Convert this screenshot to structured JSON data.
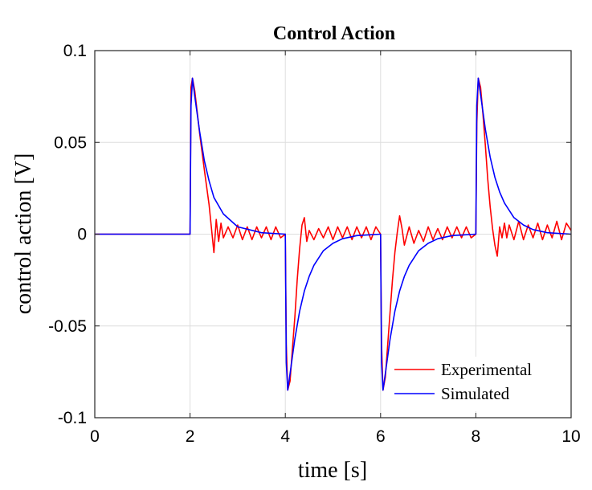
{
  "chart_data": {
    "type": "line",
    "title": "Control Action",
    "xlabel": "time [s]",
    "ylabel": "control action [V]",
    "xlim": [
      0,
      10
    ],
    "ylim": [
      -0.1,
      0.1
    ],
    "xticks": [
      0,
      2,
      4,
      6,
      8,
      10
    ],
    "yticks": [
      0.1,
      0.05,
      0,
      -0.05,
      -0.1
    ],
    "xtick_labels": [
      "0",
      "2",
      "4",
      "6",
      "8",
      "10"
    ],
    "ytick_labels": [
      "0.1",
      "0.05",
      "0",
      "-0.05",
      "-0.1"
    ],
    "grid": true,
    "legend": {
      "position": "bottom-right",
      "entries": [
        "Experimental",
        "Simulated"
      ]
    },
    "series": [
      {
        "name": "Experimental",
        "color": "#ff0000",
        "x": [
          0,
          2.0,
          2.02,
          2.05,
          2.1,
          2.2,
          2.3,
          2.4,
          2.45,
          2.5,
          2.55,
          2.6,
          2.65,
          2.7,
          2.8,
          2.9,
          3.0,
          3.1,
          3.2,
          3.3,
          3.4,
          3.5,
          3.6,
          3.7,
          3.8,
          3.9,
          4.0,
          4.02,
          4.05,
          4.1,
          4.15,
          4.2,
          4.25,
          4.3,
          4.35,
          4.4,
          4.45,
          4.5,
          4.6,
          4.7,
          4.8,
          4.9,
          5.0,
          5.1,
          5.2,
          5.3,
          5.4,
          5.5,
          5.6,
          5.7,
          5.8,
          5.9,
          6.0,
          6.02,
          6.05,
          6.1,
          6.15,
          6.2,
          6.25,
          6.3,
          6.35,
          6.4,
          6.45,
          6.5,
          6.6,
          6.7,
          6.8,
          6.9,
          7.0,
          7.1,
          7.2,
          7.3,
          7.4,
          7.5,
          7.6,
          7.7,
          7.8,
          7.9,
          8.0,
          8.02,
          8.05,
          8.1,
          8.15,
          8.2,
          8.25,
          8.3,
          8.35,
          8.4,
          8.45,
          8.5,
          8.55,
          8.6,
          8.65,
          8.7,
          8.8,
          8.9,
          9.0,
          9.1,
          9.2,
          9.3,
          9.4,
          9.5,
          9.6,
          9.7,
          9.8,
          9.9,
          10.0
        ],
        "y": [
          0,
          0,
          0.08,
          0.085,
          0.078,
          0.055,
          0.035,
          0.016,
          0.003,
          -0.01,
          0.008,
          -0.004,
          0.006,
          -0.002,
          0.004,
          -0.002,
          0.005,
          -0.003,
          0.004,
          -0.003,
          0.004,
          -0.002,
          0.004,
          -0.003,
          0.004,
          -0.002,
          0,
          -0.06,
          -0.085,
          -0.08,
          -0.062,
          -0.045,
          -0.025,
          -0.008,
          0.005,
          0.009,
          -0.004,
          0.002,
          -0.003,
          0.003,
          -0.002,
          0.004,
          -0.003,
          0.004,
          -0.002,
          0.004,
          -0.003,
          0.004,
          -0.002,
          0.004,
          -0.003,
          0.004,
          0,
          -0.06,
          -0.085,
          -0.078,
          -0.06,
          -0.042,
          -0.025,
          -0.01,
          0.001,
          0.01,
          0.003,
          -0.006,
          0.004,
          -0.005,
          0.002,
          -0.004,
          0.004,
          -0.003,
          0.003,
          -0.003,
          0.004,
          -0.002,
          0.004,
          -0.002,
          0.004,
          -0.002,
          0,
          0.06,
          0.085,
          0.08,
          0.065,
          0.048,
          0.03,
          0.015,
          0.003,
          -0.006,
          -0.012,
          0.004,
          -0.002,
          0.006,
          -0.002,
          0.005,
          -0.003,
          0.007,
          -0.003,
          0.005,
          -0.002,
          0.006,
          -0.003,
          0.005,
          -0.002,
          0.007,
          -0.003,
          0.006,
          0.002
        ]
      },
      {
        "name": "Simulated",
        "color": "#0000ff",
        "x": [
          0,
          2.0,
          2.02,
          2.05,
          2.1,
          2.2,
          2.3,
          2.4,
          2.5,
          2.7,
          3.0,
          3.5,
          4.0,
          4.02,
          4.05,
          4.1,
          4.2,
          4.3,
          4.4,
          4.5,
          4.6,
          4.8,
          5.0,
          5.2,
          5.5,
          6.0,
          6.02,
          6.05,
          6.1,
          6.2,
          6.3,
          6.4,
          6.5,
          6.6,
          6.8,
          7.0,
          7.2,
          7.5,
          8.0,
          8.02,
          8.05,
          8.1,
          8.2,
          8.3,
          8.4,
          8.5,
          8.6,
          8.8,
          9.0,
          9.2,
          9.5,
          10.0
        ],
        "y": [
          0,
          0,
          0.07,
          0.085,
          0.075,
          0.056,
          0.04,
          0.029,
          0.02,
          0.011,
          0.004,
          0.0008,
          0,
          -0.07,
          -0.085,
          -0.076,
          -0.057,
          -0.042,
          -0.031,
          -0.023,
          -0.017,
          -0.009,
          -0.005,
          -0.0025,
          -0.0008,
          0,
          -0.07,
          -0.085,
          -0.076,
          -0.057,
          -0.042,
          -0.031,
          -0.023,
          -0.017,
          -0.009,
          -0.005,
          -0.0025,
          -0.0008,
          0,
          0.07,
          0.085,
          0.076,
          0.057,
          0.042,
          0.031,
          0.023,
          0.017,
          0.009,
          0.005,
          0.0025,
          0.0008,
          0
        ]
      }
    ]
  }
}
